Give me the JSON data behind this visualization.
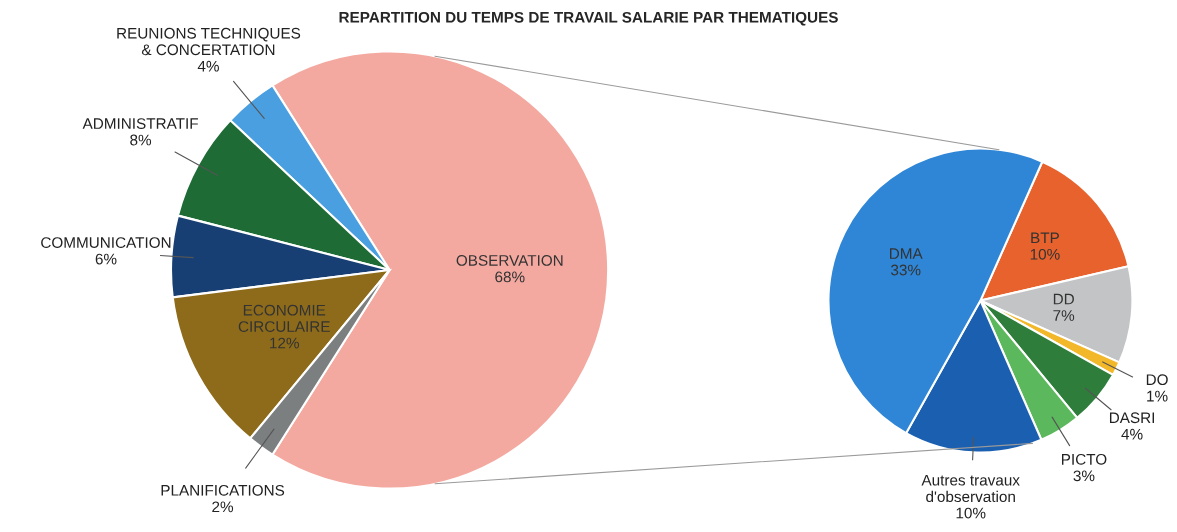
{
  "chart_data": [
    {
      "type": "pie",
      "title": "REPARTITION DU TEMPS DE TRAVAIL SALARIE PAR THEMATIQUES",
      "categories": [
        "OBSERVATION",
        "REUNIONS TECHNIQUES & CONCERTATION",
        "ADMINISTRATIF",
        "COMMUNICATION",
        "ECONOMIE CIRCULAIRE",
        "PLANIFICATIONS"
      ],
      "values": [
        68,
        4,
        8,
        6,
        12,
        2
      ],
      "value_labels": [
        "68%",
        "4%",
        "8%",
        "6%",
        "12%",
        "2%"
      ],
      "colors": [
        "#f4a9a0",
        "#4a9fe0",
        "#1e6b35",
        "#173f73",
        "#8e6b1a",
        "#7b7f80"
      ]
    },
    {
      "type": "pie",
      "categories": [
        "BTP",
        "DD",
        "DO",
        "DASRI",
        "PICTO",
        "Autres travaux d'observation",
        "DMA"
      ],
      "values": [
        10,
        7,
        1,
        4,
        3,
        10,
        33
      ],
      "value_labels": [
        "10%",
        "7%",
        "1%",
        "4%",
        "3%",
        "10%",
        "33%"
      ],
      "colors": [
        "#e8622d",
        "#c2c4c6",
        "#f2b82a",
        "#2e7d3a",
        "#5cb85c",
        "#1a5fb0",
        "#2f86d6"
      ]
    }
  ]
}
